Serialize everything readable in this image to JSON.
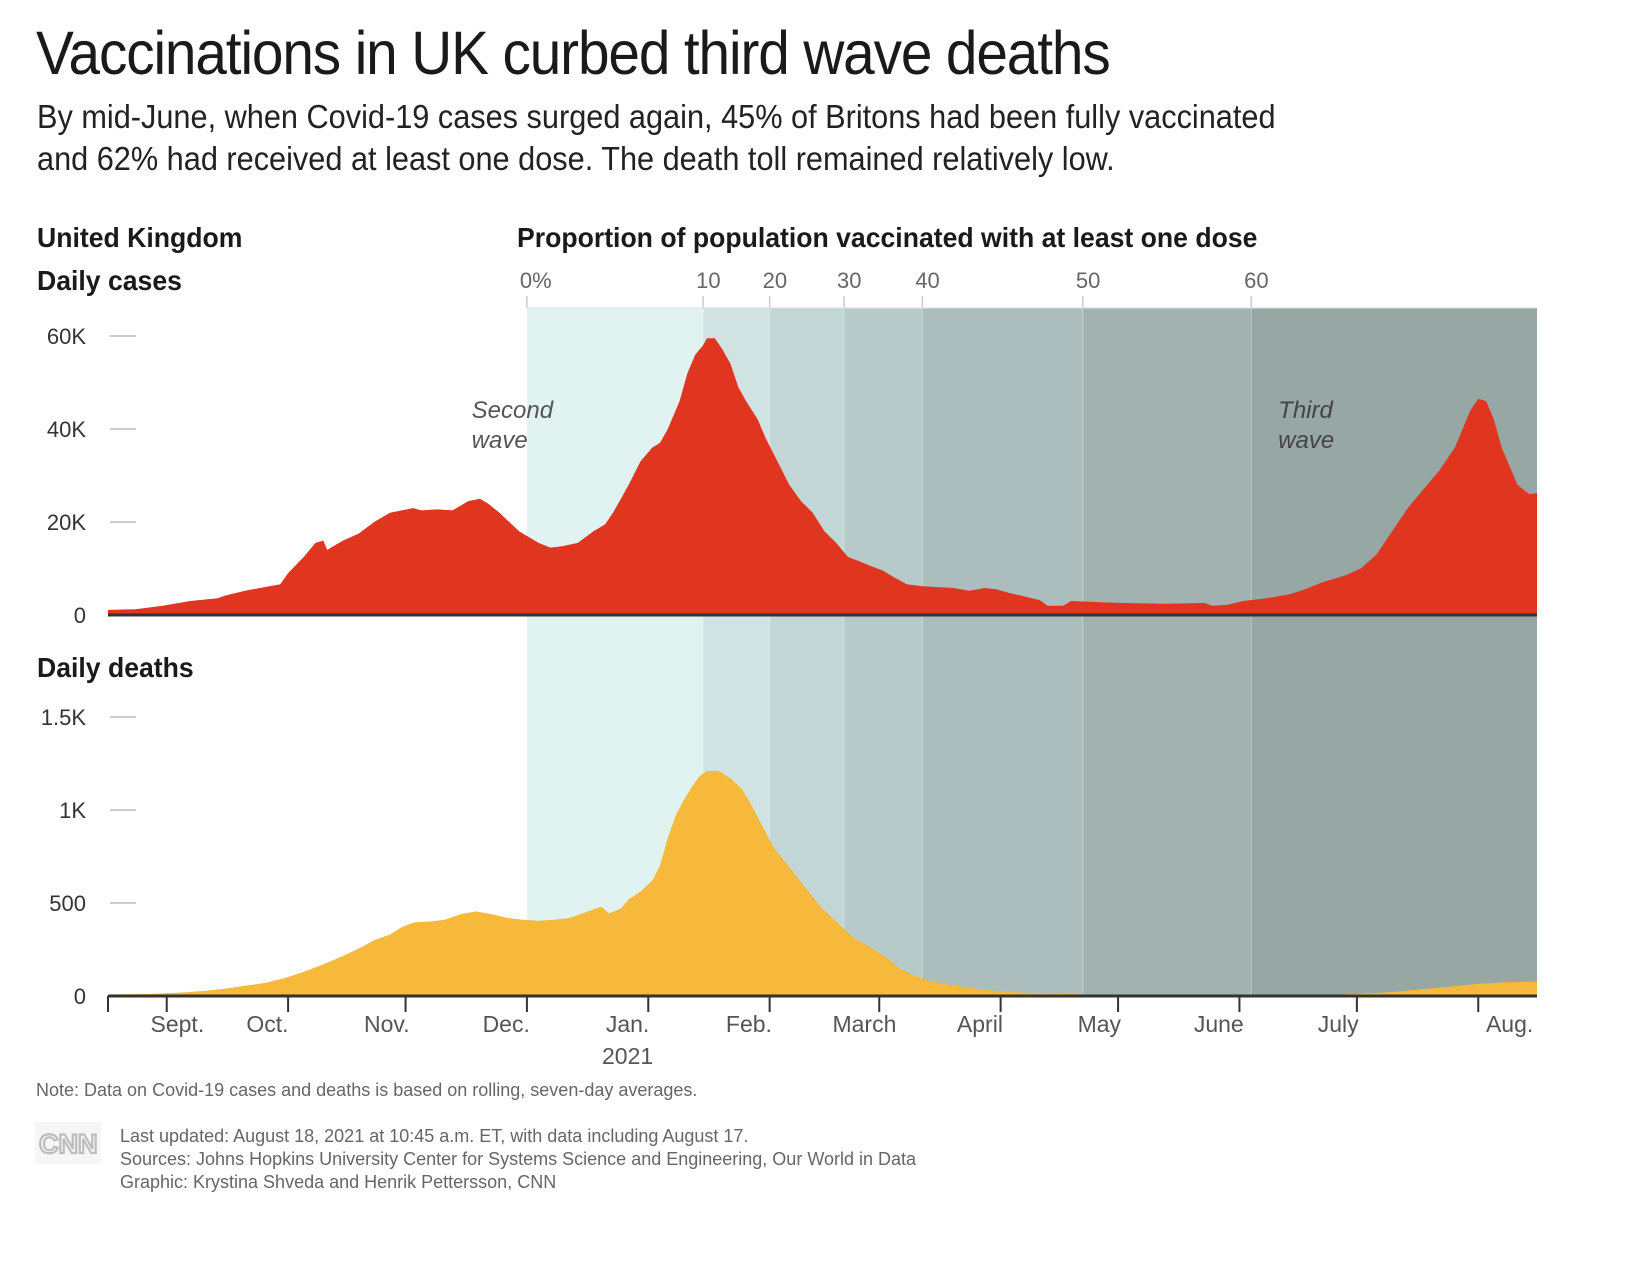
{
  "header": {
    "title": "Vaccinations in UK curbed third wave deaths",
    "subtitle_line1": "By mid-June, when Covid-19 cases surged again, 45% of Britons had been fully vaccinated",
    "subtitle_line2": "and 62% had received at least one dose. The death toll remained relatively low.",
    "country": "United Kingdom"
  },
  "footer": {
    "note": "Note: Data on Covid-19 cases and deaths is based on rolling, seven-day averages.",
    "last_updated": "Last updated: August 18, 2021 at 10:45 a.m. ET, with data including August 17.",
    "sources": "Sources: Johns Hopkins University Center for Systems Science and Engineering, Our World in Data",
    "graphic": "Graphic: Krystina Shveda and Henrik Pettersson, CNN",
    "logo": "CNN"
  },
  "colors": {
    "cases": "#e0351f",
    "deaths": "#f6b93b",
    "bands": [
      "#e0f3f1",
      "#d0e3e2",
      "#c3d6d6",
      "#b7caca",
      "#abbdbc",
      "#a2b2b0",
      "#97a7a4"
    ],
    "axis": "#333333",
    "gridtick": "#cccccc"
  },
  "chart_data": [
    {
      "type": "area",
      "title": "Daily cases",
      "xlabel": "",
      "ylabel": "",
      "x_unit": "days since Aug. 17, 2020",
      "ylim": [
        0,
        60000
      ],
      "yticks": [
        0,
        20000,
        40000,
        60000
      ],
      "ytick_labels": [
        "0",
        "20K",
        "40K",
        "60K"
      ],
      "annotations": [
        {
          "text_line1": "Second",
          "text_line2": "wave",
          "x_day": 98
        },
        {
          "text_line1": "Third",
          "text_line2": "wave",
          "x_day": 304
        }
      ],
      "series": [
        {
          "name": "Daily cases (7-day avg)",
          "points": [
            [
              0,
              1100
            ],
            [
              7,
              1250
            ],
            [
              14,
              2000
            ],
            [
              21,
              3000
            ],
            [
              28,
              3600
            ],
            [
              30,
              4200
            ],
            [
              35,
              5200
            ],
            [
              40,
              6000
            ],
            [
              44,
              6600
            ],
            [
              46,
              9000
            ],
            [
              50,
              12500
            ],
            [
              53,
              15500
            ],
            [
              55,
              16000
            ],
            [
              56,
              14000
            ],
            [
              60,
              16000
            ],
            [
              64,
              17500
            ],
            [
              68,
              20000
            ],
            [
              72,
              22000
            ],
            [
              75,
              22500
            ],
            [
              78,
              23000
            ],
            [
              80,
              22500
            ],
            [
              84,
              22700
            ],
            [
              88,
              22500
            ],
            [
              92,
              24500
            ],
            [
              95,
              25000
            ],
            [
              97,
              24000
            ],
            [
              100,
              22000
            ],
            [
              105,
              18000
            ],
            [
              110,
              15500
            ],
            [
              113,
              14500
            ],
            [
              116,
              14800
            ],
            [
              120,
              15500
            ],
            [
              124,
              18000
            ],
            [
              127,
              19500
            ],
            [
              129,
              22000
            ],
            [
              131,
              25000
            ],
            [
              133,
              28000
            ],
            [
              136,
              33000
            ],
            [
              139,
              36000
            ],
            [
              141,
              37000
            ],
            [
              143,
              40000
            ],
            [
              146,
              46000
            ],
            [
              148,
              52000
            ],
            [
              150,
              56000
            ],
            [
              152,
              58000
            ],
            [
              153,
              59500
            ],
            [
              155,
              59500
            ],
            [
              157,
              57000
            ],
            [
              159,
              54000
            ],
            [
              161,
              49000
            ],
            [
              163,
              46000
            ],
            [
              166,
              42000
            ],
            [
              168,
              38000
            ],
            [
              171,
              33000
            ],
            [
              174,
              28000
            ],
            [
              177,
              24500
            ],
            [
              180,
              22000
            ],
            [
              183,
              18000
            ],
            [
              186,
              15500
            ],
            [
              189,
              12500
            ],
            [
              192,
              11500
            ],
            [
              195,
              10500
            ],
            [
              198,
              9500
            ],
            [
              201,
              8000
            ],
            [
              204,
              6600
            ],
            [
              208,
              6200
            ],
            [
              212,
              6000
            ],
            [
              216,
              5800
            ],
            [
              220,
              5200
            ],
            [
              224,
              5800
            ],
            [
              227,
              5500
            ],
            [
              230,
              4800
            ],
            [
              234,
              4000
            ],
            [
              238,
              3200
            ],
            [
              240,
              2000
            ],
            [
              244,
              2000
            ],
            [
              246,
              3000
            ],
            [
              252,
              2800
            ],
            [
              258,
              2600
            ],
            [
              264,
              2500
            ],
            [
              270,
              2400
            ],
            [
              276,
              2500
            ],
            [
              280,
              2600
            ],
            [
              282,
              2000
            ],
            [
              286,
              2200
            ],
            [
              290,
              3000
            ],
            [
              296,
              3600
            ],
            [
              302,
              4500
            ],
            [
              306,
              5600
            ],
            [
              310,
              7000
            ],
            [
              316,
              8500
            ],
            [
              320,
              10000
            ],
            [
              324,
              13000
            ],
            [
              328,
              18000
            ],
            [
              332,
              23000
            ],
            [
              336,
              27000
            ],
            [
              340,
              31000
            ],
            [
              344,
              36000
            ],
            [
              346,
              40000
            ],
            [
              348,
              44000
            ],
            [
              350,
              46500
            ],
            [
              352,
              46000
            ],
            [
              354,
              42000
            ],
            [
              356,
              36000
            ],
            [
              358,
              32000
            ],
            [
              360,
              28000
            ],
            [
              363,
              26000
            ],
            [
              366,
              26000
            ],
            [
              370,
              27000
            ],
            [
              374,
              28000
            ],
            [
              378,
              28500
            ],
            [
              380,
              28500
            ],
            [
              365,
              26200
            ]
          ]
        }
      ]
    },
    {
      "type": "area",
      "title": "Daily deaths",
      "xlabel": "",
      "ylabel": "",
      "x_unit": "days since Aug. 17, 2020",
      "ylim": [
        0,
        1500
      ],
      "yticks": [
        0,
        500,
        1000,
        1500
      ],
      "ytick_labels": [
        "0",
        "500",
        "1K",
        "1.5K"
      ],
      "xticks_days": [
        15,
        46,
        76,
        107,
        138,
        169,
        197,
        228,
        258,
        289,
        319,
        350
      ],
      "xtick_labels": [
        "Sept.",
        "Oct.",
        "Nov.",
        "Dec.",
        "Jan.",
        "Feb.",
        "March",
        "April",
        "May",
        "June",
        "July",
        "Aug."
      ],
      "year_label": "2021",
      "year_label_under": "Jan.",
      "series": [
        {
          "name": "Daily deaths (7-day avg)",
          "points": [
            [
              0,
              8
            ],
            [
              10,
              10
            ],
            [
              15,
              15
            ],
            [
              20,
              20
            ],
            [
              25,
              28
            ],
            [
              30,
              40
            ],
            [
              35,
              55
            ],
            [
              40,
              70
            ],
            [
              45,
              95
            ],
            [
              50,
              130
            ],
            [
              55,
              170
            ],
            [
              60,
              215
            ],
            [
              64,
              255
            ],
            [
              68,
              300
            ],
            [
              72,
              330
            ],
            [
              75,
              370
            ],
            [
              78,
              395
            ],
            [
              82,
              400
            ],
            [
              86,
              410
            ],
            [
              90,
              440
            ],
            [
              94,
              455
            ],
            [
              98,
              440
            ],
            [
              102,
              420
            ],
            [
              106,
              410
            ],
            [
              110,
              405
            ],
            [
              114,
              410
            ],
            [
              118,
              420
            ],
            [
              122,
              450
            ],
            [
              126,
              480
            ],
            [
              128,
              445
            ],
            [
              131,
              470
            ],
            [
              133,
              520
            ],
            [
              136,
              560
            ],
            [
              139,
              620
            ],
            [
              141,
              700
            ],
            [
              143,
              850
            ],
            [
              145,
              970
            ],
            [
              147,
              1050
            ],
            [
              149,
              1120
            ],
            [
              151,
              1180
            ],
            [
              153,
              1210
            ],
            [
              156,
              1210
            ],
            [
              159,
              1170
            ],
            [
              162,
              1110
            ],
            [
              164,
              1040
            ],
            [
              166,
              960
            ],
            [
              168,
              880
            ],
            [
              170,
              800
            ],
            [
              173,
              720
            ],
            [
              176,
              640
            ],
            [
              179,
              560
            ],
            [
              182,
              480
            ],
            [
              186,
              400
            ],
            [
              190,
              320
            ],
            [
              194,
              270
            ],
            [
              198,
              220
            ],
            [
              202,
              150
            ],
            [
              206,
              110
            ],
            [
              210,
              80
            ],
            [
              215,
              60
            ],
            [
              220,
              45
            ],
            [
              225,
              30
            ],
            [
              230,
              22
            ],
            [
              235,
              18
            ],
            [
              240,
              15
            ],
            [
              245,
              12
            ],
            [
              250,
              8
            ],
            [
              255,
              5
            ],
            [
              262,
              3
            ],
            [
              270,
              2
            ],
            [
              280,
              2
            ],
            [
              290,
              3
            ],
            [
              300,
              4
            ],
            [
              310,
              6
            ],
            [
              315,
              8
            ],
            [
              320,
              12
            ],
            [
              325,
              18
            ],
            [
              330,
              25
            ],
            [
              335,
              35
            ],
            [
              340,
              45
            ],
            [
              345,
              55
            ],
            [
              350,
              65
            ],
            [
              355,
              72
            ],
            [
              360,
              75
            ],
            [
              365,
              78
            ],
            [
              370,
              80
            ],
            [
              375,
              82
            ],
            [
              380,
              82
            ]
          ]
        }
      ]
    },
    {
      "type": "band",
      "title": "Proportion of population vaccinated with at least one dose",
      "thresholds": [
        {
          "label": "0%",
          "x_day": 107
        },
        {
          "label": "10",
          "x_day": 152
        },
        {
          "label": "20",
          "x_day": 169
        },
        {
          "label": "30",
          "x_day": 188
        },
        {
          "label": "40",
          "x_day": 208
        },
        {
          "label": "50",
          "x_day": 249
        },
        {
          "label": "60",
          "x_day": 292
        }
      ],
      "end_day": 365
    }
  ]
}
